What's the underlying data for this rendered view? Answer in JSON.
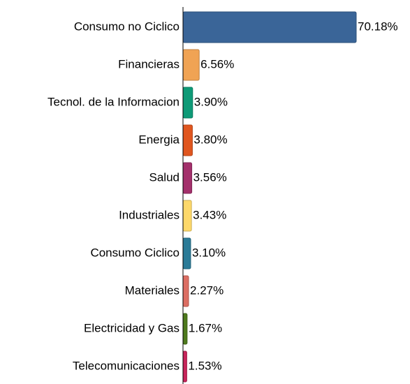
{
  "chart_data": {
    "type": "hbar",
    "categories": [
      "Consumo no Ciclico",
      "Financieras",
      "Tecnol. de la Informacion",
      "Energia",
      "Salud",
      "Industriales",
      "Consumo Ciclico",
      "Materiales",
      "Electricidad y Gas",
      "Telecomunicaciones"
    ],
    "values": [
      70.18,
      6.56,
      3.9,
      3.8,
      3.56,
      3.43,
      3.1,
      2.27,
      1.67,
      1.53
    ],
    "value_labels": [
      "70.18%",
      "6.56%",
      "3.90%",
      "3.80%",
      "3.56%",
      "3.43%",
      "3.10%",
      "2.27%",
      "1.67%",
      "1.53%"
    ],
    "colors": [
      "#3a6598",
      "#f0a354",
      "#0e9a77",
      "#e0561f",
      "#a3306b",
      "#fdd86a",
      "#2b7b97",
      "#dc6e63",
      "#4e7a1d",
      "#c8255a"
    ]
  }
}
